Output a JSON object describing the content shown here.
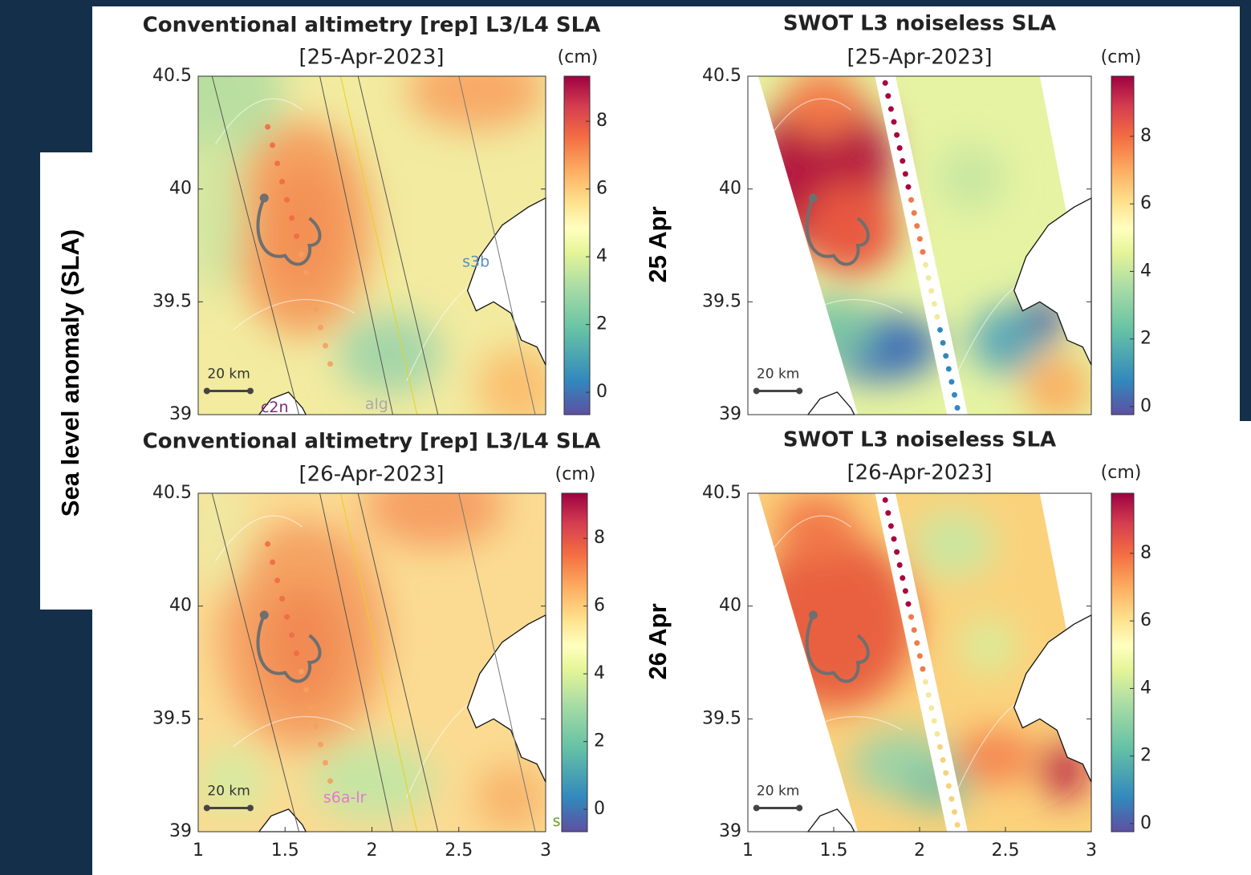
{
  "side_label": "Sea level anomaly (SLA)",
  "row_labels": [
    "25 Apr",
    "26 Apr"
  ],
  "panels": [
    {
      "title": "Conventional altimetry [rep] L3/L4 SLA",
      "date": "[25-Apr-2023]",
      "unit": "(cm)",
      "xlim": [
        1,
        3
      ],
      "ylim": [
        39,
        40.5
      ],
      "yticks": [
        39,
        39.5,
        40,
        40.5
      ],
      "colorbar_lim": [
        -0.66,
        9.33
      ],
      "colorbar_ticks": [
        0,
        2,
        4,
        6,
        8
      ],
      "scale_bar": "20 km",
      "track_labels": [
        "s3b",
        "c2n",
        "alg"
      ]
    },
    {
      "title": "SWOT L3 noiseless SLA",
      "date": "[25-Apr-2023]",
      "unit": "(cm)",
      "xlim": [
        1,
        3
      ],
      "ylim": [
        39,
        40.5
      ],
      "yticks": [
        39,
        39.5,
        40,
        40.5
      ],
      "colorbar_lim": [
        -0.24,
        9.78
      ],
      "colorbar_ticks": [
        0,
        2,
        4,
        6,
        8
      ],
      "scale_bar": "20 km",
      "track_labels": []
    },
    {
      "title": "Conventional altimetry [rep] L3/L4 SLA",
      "date": "[26-Apr-2023]",
      "unit": "(cm)",
      "xlim": [
        1,
        3
      ],
      "ylim": [
        39,
        40.5
      ],
      "xticks": [
        1,
        1.5,
        2,
        2.5,
        3
      ],
      "yticks": [
        39,
        39.5,
        40,
        40.5
      ],
      "colorbar_lim": [
        -0.66,
        9.33
      ],
      "colorbar_ticks": [
        0,
        2,
        4,
        6,
        8
      ],
      "scale_bar": "20 km",
      "track_labels": [
        "s6a-lr",
        "s"
      ]
    },
    {
      "title": "SWOT L3 noiseless SLA",
      "date": "[26-Apr-2023]",
      "unit": "(cm)",
      "xlim": [
        1,
        3
      ],
      "ylim": [
        39,
        40.5
      ],
      "xticks": [
        1,
        1.5,
        2,
        2.5,
        3
      ],
      "yticks": [
        39,
        39.5,
        40,
        40.5
      ],
      "colorbar_lim": [
        -0.24,
        9.78
      ],
      "colorbar_ticks": [
        0,
        2,
        4,
        6,
        8
      ],
      "scale_bar": "20 km",
      "track_labels": []
    }
  ]
}
